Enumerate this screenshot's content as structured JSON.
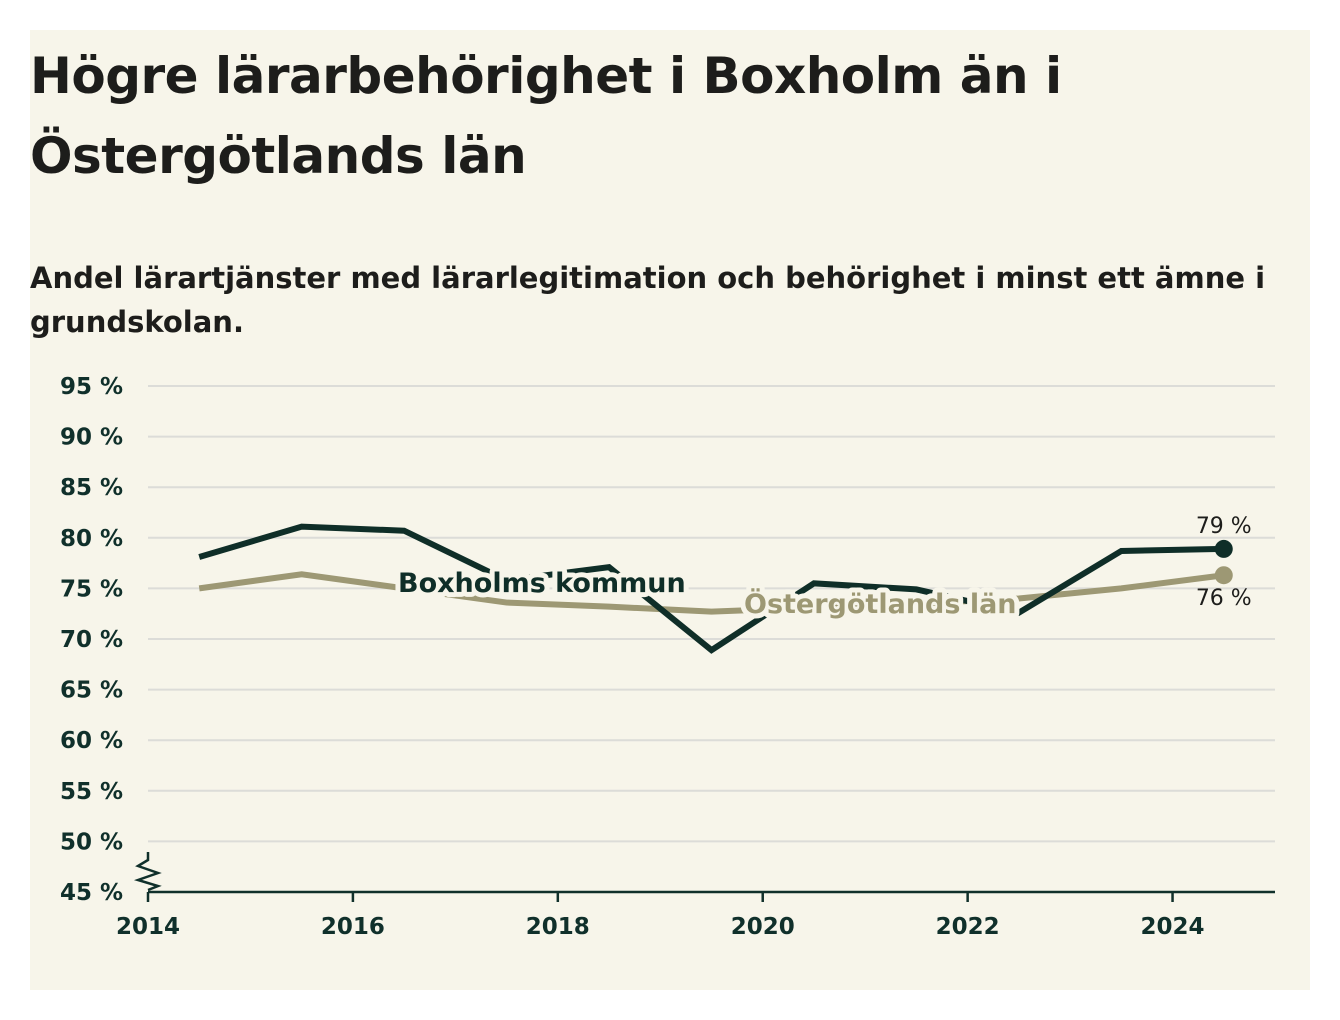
{
  "title": "Högre lärarbehörighet i Boxholm än i Östergötlands län",
  "subtitle": "Andel lärartjänster med lärarlegitimation och behörighet i minst ett ämne i grundskolan.",
  "colors": {
    "background": "#f7f5ea",
    "boxholm": "#0f2e28",
    "lan": "#9d9874",
    "grid": "#dcdcd8",
    "axis": "#10302b"
  },
  "chart_data": {
    "type": "line",
    "title": "Högre lärarbehörighet i Boxholm än i Östergötlands län",
    "subtitle": "Andel lärartjänster med lärarlegitimation och behörighet i minst ett ämne i grundskolan.",
    "x": [
      2014.5,
      2015.5,
      2016.5,
      2017.5,
      2018.5,
      2019.5,
      2020.5,
      2021.5,
      2022.5,
      2023.5,
      2024.5
    ],
    "xlim": [
      2014,
      2025
    ],
    "xticks": [
      2014,
      2016,
      2018,
      2020,
      2022,
      2024
    ],
    "ylim": [
      45,
      95
    ],
    "yticks": [
      "45 %",
      "50 %",
      "55 %",
      "60 %",
      "65 %",
      "70 %",
      "75 %",
      "80 %",
      "85 %",
      "90 %",
      "95 %"
    ],
    "ytick_values": [
      45,
      50,
      55,
      60,
      65,
      70,
      75,
      80,
      85,
      90,
      95
    ],
    "axis_break": true,
    "grid": true,
    "series": [
      {
        "name": "Boxholms kommun",
        "values": [
          78.1,
          81.1,
          80.7,
          75.8,
          77.1,
          68.9,
          75.5,
          74.9,
          72.6,
          78.7,
          78.9
        ],
        "end_label": "79 %"
      },
      {
        "name": "Östergötlands län",
        "values": [
          75.0,
          76.4,
          75.0,
          73.6,
          73.2,
          72.7,
          73.1,
          73.5,
          74.0,
          75.0,
          76.3
        ],
        "end_label": "76 %"
      }
    ]
  }
}
